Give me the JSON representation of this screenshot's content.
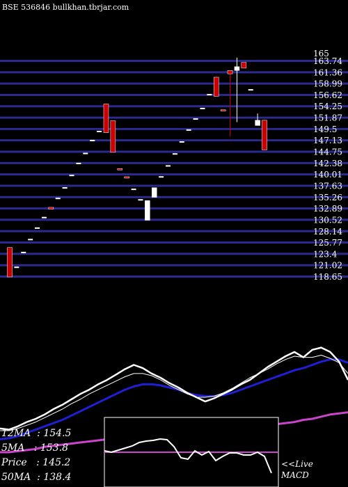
{
  "header": {
    "exchange": "BSE",
    "symbol": "536846",
    "site": "bullkhan.tbrjar.com"
  },
  "chart_data": {
    "type": "candlestick",
    "price_axis_ticks": [
      165,
      163.74,
      161.36,
      158.99,
      156.62,
      154.25,
      151.87,
      149.5,
      147.13,
      144.75,
      142.38,
      140.01,
      137.63,
      135.26,
      132.89,
      130.52,
      128.14,
      125.77,
      123.4,
      121.02,
      118.65
    ],
    "price_axis_labels": [
      "165",
      "163.74",
      "161.36",
      "158.99",
      "156.62",
      "154.25",
      "151.87",
      "149.5",
      "147.13",
      "144.75",
      "142.38",
      "140.01",
      "137.63",
      "135.26",
      "132.89",
      "130.52",
      "128.14",
      "125.77",
      "123.4",
      "121.02",
      "118.65"
    ],
    "candles": [
      {
        "o": 124.8,
        "h": 124.8,
        "c": 118.65,
        "l": 118.65,
        "dir": "down"
      },
      {
        "o": 120.8,
        "h": 120.8,
        "c": 120.8,
        "l": 120.8,
        "dir": "doji"
      },
      {
        "o": 123.9,
        "h": 123.9,
        "c": 123.9,
        "l": 123.9,
        "dir": "doji"
      },
      {
        "o": 126.6,
        "h": 126.6,
        "c": 126.6,
        "l": 126.6,
        "dir": "doji"
      },
      {
        "o": 129.0,
        "h": 129.0,
        "c": 129.0,
        "l": 129.0,
        "dir": "doji"
      },
      {
        "o": 131.2,
        "h": 131.2,
        "c": 131.2,
        "l": 131.2,
        "dir": "doji"
      },
      {
        "o": 133.2,
        "h": 133.2,
        "c": 132.8,
        "l": 132.8,
        "dir": "down"
      },
      {
        "o": 135.2,
        "h": 135.2,
        "c": 135.2,
        "l": 135.2,
        "dir": "doji"
      },
      {
        "o": 137.4,
        "h": 137.4,
        "c": 137.4,
        "l": 137.4,
        "dir": "doji"
      },
      {
        "o": 140.0,
        "h": 140.0,
        "c": 140.0,
        "l": 140.0,
        "dir": "doji"
      },
      {
        "o": 142.5,
        "h": 142.5,
        "c": 142.5,
        "l": 142.5,
        "dir": "doji"
      },
      {
        "o": 144.6,
        "h": 144.6,
        "c": 144.6,
        "l": 144.6,
        "dir": "doji"
      },
      {
        "o": 147.3,
        "h": 147.3,
        "c": 147.3,
        "l": 147.3,
        "dir": "doji"
      },
      {
        "o": 149.2,
        "h": 149.2,
        "c": 149.2,
        "l": 149.2,
        "dir": "doji"
      },
      {
        "o": 154.8,
        "h": 154.8,
        "c": 148.8,
        "l": 148.8,
        "dir": "down"
      },
      {
        "o": 151.3,
        "h": 151.3,
        "c": 144.7,
        "l": 144.7,
        "dir": "down"
      },
      {
        "o": 141.3,
        "h": 141.3,
        "c": 141.1,
        "l": 141.1,
        "dir": "down"
      },
      {
        "o": 139.6,
        "h": 139.6,
        "c": 139.3,
        "l": 139.3,
        "dir": "down"
      },
      {
        "o": 137.1,
        "h": 137.1,
        "c": 137.1,
        "l": 137.1,
        "dir": "doji"
      },
      {
        "o": 134.9,
        "h": 134.9,
        "c": 134.9,
        "l": 134.9,
        "dir": "doji"
      },
      {
        "o": 130.5,
        "h": 134.6,
        "c": 134.6,
        "l": 130.5,
        "dir": "up"
      },
      {
        "o": 135.3,
        "h": 137.3,
        "c": 137.3,
        "l": 135.3,
        "dir": "up"
      },
      {
        "o": 139.7,
        "h": 139.7,
        "c": 139.7,
        "l": 139.7,
        "dir": "doji"
      },
      {
        "o": 142.0,
        "h": 142.0,
        "c": 142.0,
        "l": 142.0,
        "dir": "doji"
      },
      {
        "o": 144.5,
        "h": 144.5,
        "c": 144.5,
        "l": 144.5,
        "dir": "doji"
      },
      {
        "o": 147.0,
        "h": 147.0,
        "c": 147.0,
        "l": 147.0,
        "dir": "doji"
      },
      {
        "o": 149.5,
        "h": 149.5,
        "c": 149.5,
        "l": 149.5,
        "dir": "doji"
      },
      {
        "o": 151.8,
        "h": 151.8,
        "c": 151.8,
        "l": 151.8,
        "dir": "doji"
      },
      {
        "o": 154.0,
        "h": 154.0,
        "c": 154.0,
        "l": 154.0,
        "dir": "doji"
      },
      {
        "o": 156.9,
        "h": 156.9,
        "c": 156.9,
        "l": 156.9,
        "dir": "doji"
      },
      {
        "o": 160.4,
        "h": 160.4,
        "c": 156.4,
        "l": 156.4,
        "dir": "down"
      },
      {
        "o": 153.6,
        "h": 153.6,
        "c": 153.4,
        "l": 153.4,
        "dir": "down"
      },
      {
        "o": 161.8,
        "h": 161.8,
        "c": 161.1,
        "l": 148.0,
        "dir": "down"
      },
      {
        "o": 161.8,
        "h": 164.5,
        "c": 162.6,
        "l": 151.0,
        "dir": "up"
      },
      {
        "o": 163.5,
        "h": 163.5,
        "c": 162.3,
        "l": 162.3,
        "dir": "down"
      },
      {
        "o": 157.9,
        "h": 157.9,
        "c": 157.9,
        "l": 157.9,
        "dir": "doji"
      },
      {
        "o": 150.3,
        "h": 152.8,
        "c": 151.4,
        "l": 150.3,
        "dir": "up"
      },
      {
        "o": 151.4,
        "h": 151.4,
        "c": 145.2,
        "l": 145.2,
        "dir": "down"
      }
    ],
    "ma_legend": [
      {
        "name": "12MA",
        "value": "154.5"
      },
      {
        "name": "5MA",
        "value": "153.8"
      },
      {
        "name": "Price",
        "value": "145.2"
      },
      {
        "name": "50MA",
        "value": "138.4"
      }
    ],
    "ma_lines_level": {
      "white_thick": [
        0.22,
        0.21,
        0.24,
        0.28,
        0.31,
        0.35,
        0.4,
        0.44,
        0.49,
        0.54,
        0.58,
        0.63,
        0.67,
        0.72,
        0.77,
        0.81,
        0.78,
        0.73,
        0.69,
        0.64,
        0.6,
        0.55,
        0.51,
        0.47,
        0.5,
        0.54,
        0.58,
        0.63,
        0.67,
        0.73,
        0.79,
        0.84,
        0.89,
        0.93,
        0.88,
        0.95,
        0.97,
        0.93,
        0.84,
        0.67
      ],
      "white_thin": [
        0.2,
        0.2,
        0.22,
        0.25,
        0.28,
        0.32,
        0.36,
        0.4,
        0.45,
        0.49,
        0.54,
        0.58,
        0.62,
        0.66,
        0.7,
        0.73,
        0.73,
        0.71,
        0.67,
        0.62,
        0.58,
        0.54,
        0.51,
        0.51,
        0.52,
        0.55,
        0.59,
        0.64,
        0.69,
        0.73,
        0.77,
        0.82,
        0.86,
        0.89,
        0.88,
        0.88,
        0.9,
        0.87,
        0.83,
        0.73
      ],
      "blue": [
        0.12,
        0.13,
        0.15,
        0.18,
        0.21,
        0.24,
        0.27,
        0.3,
        0.34,
        0.38,
        0.42,
        0.46,
        0.5,
        0.54,
        0.58,
        0.61,
        0.63,
        0.63,
        0.62,
        0.6,
        0.58,
        0.55,
        0.53,
        0.52,
        0.52,
        0.53,
        0.55,
        0.58,
        0.61,
        0.64,
        0.67,
        0.7,
        0.73,
        0.76,
        0.78,
        0.81,
        0.84,
        0.86,
        0.86,
        0.83
      ],
      "magenta": [
        0.0,
        0.0,
        0.01,
        0.02,
        0.03,
        0.05,
        0.06,
        0.07,
        0.08,
        0.09,
        0.1,
        0.11,
        0.12,
        0.13,
        0.13,
        0.14,
        0.15,
        0.15,
        0.16,
        0.17,
        0.17,
        0.17,
        0.18,
        0.18,
        0.19,
        0.2,
        0.21,
        0.22,
        0.23,
        0.24,
        0.25,
        0.26,
        0.27,
        0.28,
        0.3,
        0.31,
        0.33,
        0.35,
        0.36,
        0.37
      ]
    },
    "macd": {
      "label_prefix": "<<Live",
      "label": "MACD",
      "signal_level": 0.5,
      "macd_level": [
        0.52,
        0.5,
        0.53,
        0.56,
        0.59,
        0.64,
        0.66,
        0.67,
        0.69,
        0.68,
        0.58,
        0.42,
        0.4,
        0.52,
        0.46,
        0.51,
        0.38,
        0.44,
        0.49,
        0.49,
        0.46,
        0.46,
        0.5,
        0.44,
        0.2
      ]
    },
    "colors": {
      "background": "#000000",
      "grid": "#2b2b8f",
      "up": "#ffffff",
      "down": "#cc0000",
      "ma_white": "#ffffff",
      "ma_blue": "#1f1fd6",
      "ma_magenta": "#cc44cc",
      "macd_signal": "#cc44cc"
    }
  }
}
